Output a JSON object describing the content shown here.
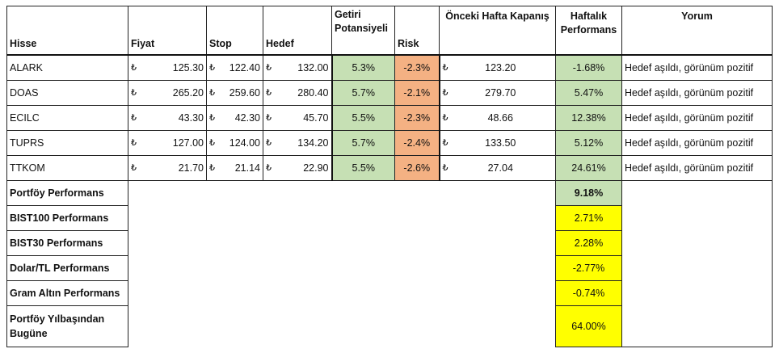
{
  "headers": {
    "hisse": "Hisse",
    "fiyat": "Fiyat",
    "stop": "Stop",
    "hedef": "Hedef",
    "getiri": "Getiri Potansiyeli",
    "risk": "Risk",
    "onceki": "Önceki Hafta Kapanış",
    "haftalik": "Haftalık Performans",
    "yorum": "Yorum"
  },
  "currency": "₺",
  "rows": [
    {
      "hisse": "ALARK",
      "fiyat": "125.30",
      "stop": "122.40",
      "hedef": "132.00",
      "getiri": "5.3%",
      "risk": "-2.3%",
      "onceki": "123.20",
      "haftalik": "-1.68%",
      "yorum": "Hedef aşıldı, görünüm pozitif"
    },
    {
      "hisse": "DOAS",
      "fiyat": "265.20",
      "stop": "259.60",
      "hedef": "280.40",
      "getiri": "5.7%",
      "risk": "-2.1%",
      "onceki": "279.70",
      "haftalik": "5.47%",
      "yorum": "Hedef aşıldı, görünüm pozitif"
    },
    {
      "hisse": "ECILC",
      "fiyat": "43.30",
      "stop": "42.30",
      "hedef": "45.70",
      "getiri": "5.5%",
      "risk": "-2.3%",
      "onceki": "48.66",
      "haftalik": "12.38%",
      "yorum": "Hedef aşıldı, görünüm pozitif"
    },
    {
      "hisse": "TUPRS",
      "fiyat": "127.00",
      "stop": "124.00",
      "hedef": "134.20",
      "getiri": "5.7%",
      "risk": "-2.4%",
      "onceki": "133.50",
      "haftalik": "5.12%",
      "yorum": "Hedef aşıldı, görünüm pozitif"
    },
    {
      "hisse": "TTKOM",
      "fiyat": "21.70",
      "stop": "21.14",
      "hedef": "22.90",
      "getiri": "5.5%",
      "risk": "-2.6%",
      "onceki": "27.04",
      "haftalik": "24.61%",
      "yorum": "Hedef aşıldı, görünüm pozitif"
    }
  ],
  "summary": [
    {
      "label": "Portföy Performans",
      "value": "9.18%"
    },
    {
      "label": "BIST100 Performans",
      "value": "2.71%"
    },
    {
      "label": "BIST30 Performans",
      "value": "2.28%"
    },
    {
      "label": "Dolar/TL Performans",
      "value": "-2.77%"
    },
    {
      "label": "Gram Altın Performans",
      "value": "-0.74%"
    },
    {
      "label": "Portföy Yılbaşından Bugüne",
      "value": "64.00%"
    }
  ],
  "colors": {
    "green": "#c6e0b4",
    "orange": "#f4b183",
    "yellow": "#ffff00"
  }
}
